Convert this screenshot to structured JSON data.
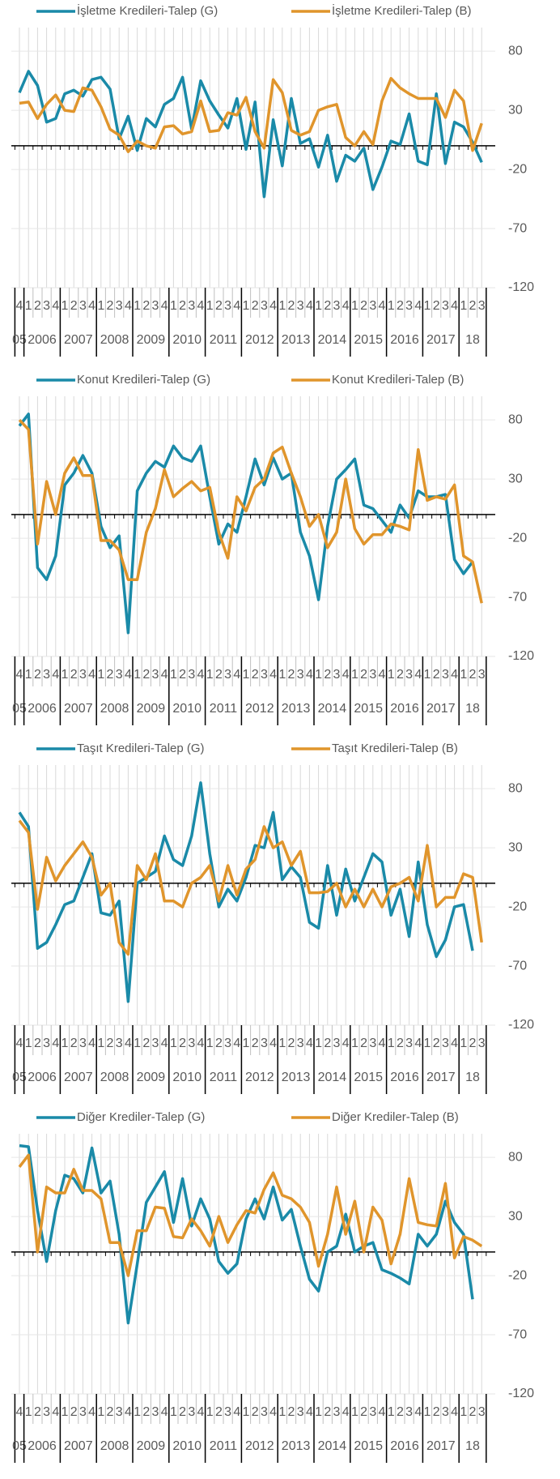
{
  "chart_data": [
    {
      "type": "line",
      "categories": [
        "4",
        "1",
        "2",
        "3",
        "4",
        "1",
        "2",
        "3",
        "4",
        "1",
        "2",
        "3",
        "4",
        "1",
        "2",
        "3",
        "4",
        "1",
        "2",
        "3",
        "4",
        "1",
        "2",
        "3",
        "4",
        "1",
        "2",
        "3",
        "4",
        "1",
        "2",
        "3",
        "4",
        "1",
        "2",
        "3",
        "4",
        "1",
        "2",
        "3",
        "4",
        "1",
        "2",
        "3",
        "4",
        "1",
        "2",
        "3",
        "4",
        "1",
        "2",
        "3"
      ],
      "year_labels": [
        "05",
        "2006",
        "2007",
        "2008",
        "2009",
        "2010",
        "2011",
        "2012",
        "2013",
        "2014",
        "2015",
        "2016",
        "2017",
        "18"
      ],
      "ylim": [
        -120,
        100
      ],
      "yticks": [
        80,
        30,
        -20,
        -70,
        -120
      ],
      "grid": true,
      "series": [
        {
          "name": "İşletme Kredileri-Talep (G)",
          "color": "#1a8aa8",
          "values": [
            45,
            63,
            51,
            20,
            23,
            44,
            47,
            42,
            56,
            58,
            48,
            6,
            25,
            -4,
            23,
            16,
            35,
            40,
            58,
            14,
            55,
            38,
            26,
            15,
            40,
            -3,
            37,
            -43,
            22,
            -17,
            40,
            2,
            6,
            -18,
            9,
            -30,
            -8,
            -13,
            -2,
            -37,
            -18,
            4,
            1,
            27,
            -13,
            -16,
            44,
            -15,
            20,
            16,
            3,
            -14
          ]
        },
        {
          "name": "İşletme Kredileri-Talep (B)",
          "color": "#e0952c",
          "values": [
            36,
            37,
            23,
            35,
            43,
            30,
            29,
            49,
            47,
            33,
            14,
            9,
            -5,
            4,
            0,
            -2,
            16,
            17,
            10,
            12,
            38,
            12,
            13,
            28,
            26,
            41,
            12,
            -2,
            56,
            45,
            13,
            9,
            12,
            30,
            33,
            35,
            7,
            0,
            12,
            1,
            38,
            57,
            49,
            44,
            40,
            40,
            40,
            24,
            47,
            38,
            -4,
            19
          ]
        }
      ]
    },
    {
      "type": "line",
      "categories": [
        "4",
        "1",
        "2",
        "3",
        "4",
        "1",
        "2",
        "3",
        "4",
        "1",
        "2",
        "3",
        "4",
        "1",
        "2",
        "3",
        "4",
        "1",
        "2",
        "3",
        "4",
        "1",
        "2",
        "3",
        "4",
        "1",
        "2",
        "3",
        "4",
        "1",
        "2",
        "3",
        "4",
        "1",
        "2",
        "3",
        "4",
        "1",
        "2",
        "3",
        "4",
        "1",
        "2",
        "3",
        "4",
        "1",
        "2",
        "3",
        "4",
        "1",
        "2",
        "3"
      ],
      "year_labels": [
        "05",
        "2006",
        "2007",
        "2008",
        "2009",
        "2010",
        "2011",
        "2012",
        "2013",
        "2014",
        "2015",
        "2016",
        "2017",
        "18"
      ],
      "ylim": [
        -120,
        100
      ],
      "yticks": [
        80,
        30,
        -20,
        -70,
        -120
      ],
      "grid": true,
      "series": [
        {
          "name": "Konut Kredileri-Talep (G)",
          "color": "#1a8aa8",
          "values": [
            75,
            85,
            -45,
            -55,
            -35,
            25,
            35,
            50,
            35,
            -10,
            -28,
            -18,
            -100,
            20,
            35,
            45,
            40,
            58,
            48,
            45,
            58,
            15,
            -25,
            -8,
            -15,
            15,
            47,
            25,
            48,
            30,
            35,
            -15,
            -35,
            -72,
            -10,
            30,
            38,
            47,
            8,
            5,
            -5,
            -15,
            8,
            -3,
            20,
            15,
            15,
            17,
            -38,
            -50,
            -40,
            null
          ]
        },
        {
          "name": "Konut Kredileri-Talep (B)",
          "color": "#e0952c",
          "values": [
            80,
            72,
            -25,
            28,
            0,
            35,
            48,
            33,
            33,
            -22,
            -22,
            -30,
            -55,
            -55,
            -15,
            5,
            38,
            15,
            22,
            28,
            20,
            23,
            -15,
            -37,
            15,
            3,
            23,
            30,
            52,
            57,
            35,
            15,
            -10,
            0,
            -28,
            -15,
            30,
            -12,
            -25,
            -17,
            -17,
            -8,
            -10,
            -13,
            55,
            12,
            15,
            13,
            25,
            -35,
            -40,
            -75
          ]
        }
      ]
    },
    {
      "type": "line",
      "categories": [
        "4",
        "1",
        "2",
        "3",
        "4",
        "1",
        "2",
        "3",
        "4",
        "1",
        "2",
        "3",
        "4",
        "1",
        "2",
        "3",
        "4",
        "1",
        "2",
        "3",
        "4",
        "1",
        "2",
        "3",
        "4",
        "1",
        "2",
        "3",
        "4",
        "1",
        "2",
        "3",
        "4",
        "1",
        "2",
        "3",
        "4",
        "1",
        "2",
        "3",
        "4",
        "1",
        "2",
        "3",
        "4",
        "1",
        "2",
        "3",
        "4",
        "1",
        "2",
        "3"
      ],
      "year_labels": [
        "05",
        "2006",
        "2007",
        "2008",
        "2009",
        "2010",
        "2011",
        "2012",
        "2013",
        "2014",
        "2015",
        "2016",
        "2017",
        "18"
      ],
      "ylim": [
        -120,
        100
      ],
      "yticks": [
        80,
        30,
        -20,
        -70,
        -120
      ],
      "grid": true,
      "series": [
        {
          "name": "Taşıt Kredileri-Talep (G)",
          "color": "#1a8aa8",
          "values": [
            60,
            48,
            -55,
            -50,
            -35,
            -18,
            -15,
            5,
            25,
            -25,
            -27,
            -15,
            -100,
            0,
            5,
            10,
            40,
            20,
            15,
            40,
            85,
            25,
            -20,
            -5,
            -15,
            5,
            32,
            30,
            60,
            3,
            14,
            5,
            -33,
            -38,
            15,
            -27,
            12,
            -15,
            5,
            25,
            18,
            -27,
            -5,
            -45,
            18,
            -35,
            -62,
            -48,
            -20,
            -18,
            -57,
            null
          ]
        },
        {
          "name": "Taşıt Kredileri-Talep (B)",
          "color": "#e0952c",
          "values": [
            53,
            43,
            -22,
            22,
            2,
            15,
            25,
            35,
            22,
            -10,
            0,
            -50,
            -60,
            15,
            3,
            25,
            -15,
            -15,
            -20,
            0,
            5,
            15,
            -15,
            15,
            -10,
            12,
            20,
            48,
            30,
            35,
            15,
            27,
            -8,
            -8,
            -7,
            0,
            -20,
            -5,
            -20,
            -5,
            -20,
            -3,
            0,
            5,
            -15,
            32,
            -20,
            -12,
            -12,
            8,
            5,
            -50
          ]
        }
      ]
    },
    {
      "type": "line",
      "categories": [
        "4",
        "1",
        "2",
        "3",
        "4",
        "1",
        "2",
        "3",
        "4",
        "1",
        "2",
        "3",
        "4",
        "1",
        "2",
        "3",
        "4",
        "1",
        "2",
        "3",
        "4",
        "1",
        "2",
        "3",
        "4",
        "1",
        "2",
        "3",
        "4",
        "1",
        "2",
        "3",
        "4",
        "1",
        "2",
        "3",
        "4",
        "1",
        "2",
        "3",
        "4",
        "1",
        "2",
        "3",
        "4",
        "1",
        "2",
        "3",
        "4",
        "1",
        "2",
        "3"
      ],
      "year_labels": [
        "05",
        "2006",
        "2007",
        "2008",
        "2009",
        "2010",
        "2011",
        "2012",
        "2013",
        "2014",
        "2015",
        "2016",
        "2017",
        "18"
      ],
      "ylim": [
        -120,
        100
      ],
      "yticks": [
        80,
        30,
        -20,
        -70,
        -120
      ],
      "grid": true,
      "series": [
        {
          "name": "Diğer Krediler-Talep (G)",
          "color": "#1a8aa8",
          "values": [
            90,
            89,
            35,
            -8,
            35,
            65,
            62,
            50,
            88,
            50,
            60,
            15,
            -60,
            -10,
            42,
            55,
            68,
            25,
            62,
            22,
            45,
            28,
            -8,
            -18,
            -10,
            28,
            45,
            28,
            55,
            27,
            36,
            5,
            -23,
            -33,
            0,
            5,
            32,
            0,
            5,
            8,
            -15,
            -18,
            -22,
            -27,
            15,
            5,
            15,
            43,
            25,
            15,
            -40,
            null
          ]
        },
        {
          "name": "Diğer Krediler-Talep (B)",
          "color": "#e0952c",
          "values": [
            72,
            82,
            0,
            55,
            50,
            50,
            70,
            52,
            52,
            45,
            8,
            8,
            -20,
            18,
            18,
            38,
            37,
            13,
            12,
            28,
            18,
            5,
            30,
            8,
            23,
            35,
            33,
            53,
            67,
            48,
            45,
            38,
            25,
            -12,
            15,
            55,
            15,
            43,
            0,
            38,
            27,
            -10,
            15,
            62,
            25,
            23,
            22,
            58,
            -5,
            13,
            10,
            5
          ]
        }
      ]
    }
  ]
}
